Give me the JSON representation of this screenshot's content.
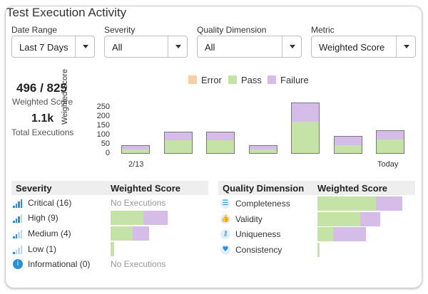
{
  "title": "Test Execution Activity",
  "filters": [
    {
      "label": "Date Range",
      "value": "Last 7 Days"
    },
    {
      "label": "Severity",
      "value": "All"
    },
    {
      "label": "Quality Dimension",
      "value": "All"
    },
    {
      "label": "Metric",
      "value": "Weighted Score"
    }
  ],
  "kpis": {
    "score_value": "496 / 825",
    "score_label": "Weighted Score",
    "exec_value": "1.1k",
    "exec_label": "Total Executions"
  },
  "colors": {
    "error": "#f6cfa6",
    "pass": "#c5e3a6",
    "failure": "#d6bde9",
    "bar_border": "#777777"
  },
  "chart_data": {
    "type": "bar",
    "stacked": true,
    "categories": [
      "2/13",
      "",
      "",
      "",
      "",
      "",
      "Today"
    ],
    "series": [
      {
        "name": "Error",
        "values": [
          0,
          0,
          0,
          0,
          0,
          0,
          0
        ]
      },
      {
        "name": "Pass",
        "values": [
          25,
          75,
          75,
          25,
          175,
          50,
          80
        ]
      },
      {
        "name": "Failure",
        "values": [
          20,
          45,
          45,
          20,
          100,
          45,
          45
        ]
      }
    ],
    "ylabel": "Weighted Score",
    "xlabel": "",
    "ylim": [
      0,
      275
    ],
    "yticks": [
      250,
      200,
      150,
      100,
      50,
      0
    ],
    "legend": "top",
    "grid": false
  },
  "severity_table": {
    "headers": [
      "Severity",
      "Weighted Score"
    ],
    "rows": [
      {
        "label": "Critical (16)",
        "icon": "signal-4-icon",
        "empty_text": "No Executions",
        "pass": null,
        "failure": null
      },
      {
        "label": "High (9)",
        "icon": "signal-3-icon",
        "empty_text": "",
        "pass": 0.38,
        "failure": 0.29
      },
      {
        "label": "Medium (4)",
        "icon": "signal-2-icon",
        "empty_text": "",
        "pass": 0.26,
        "failure": 0.19
      },
      {
        "label": "Low (1)",
        "icon": "signal-1-icon",
        "empty_text": "",
        "pass": 0.04,
        "failure": 0
      },
      {
        "label": "Informational (0)",
        "icon": "info-icon",
        "empty_text": "No Executions",
        "pass": null,
        "failure": null
      }
    ]
  },
  "quality_table": {
    "headers": [
      "Quality Dimension",
      "Weighted Score"
    ],
    "rows": [
      {
        "label": "Completeness",
        "icon": "checklist-icon",
        "pass": 0.6,
        "failure": 0.27
      },
      {
        "label": "Validity",
        "icon": "thumbs-up-icon",
        "pass": 0.44,
        "failure": 0.2
      },
      {
        "label": "Uniqueness",
        "icon": "key-icon",
        "pass": 0.16,
        "failure": 0.34
      },
      {
        "label": "Consistency",
        "icon": "heartbeat-icon",
        "pass": 0.02,
        "failure": 0
      }
    ]
  }
}
